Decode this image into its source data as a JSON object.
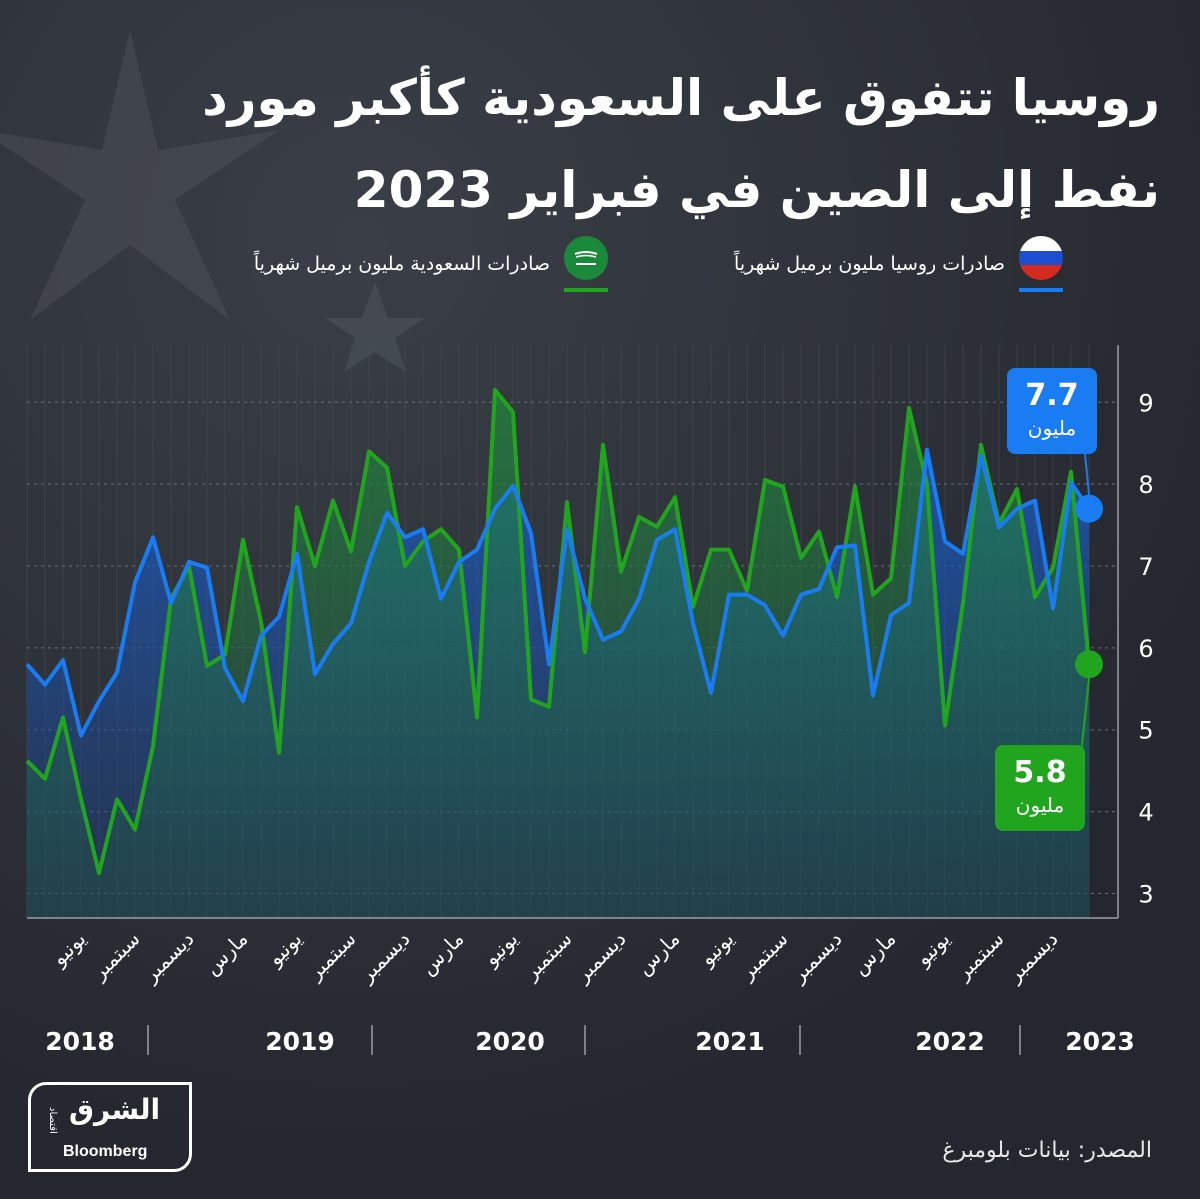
{
  "header": {
    "title_line1": "روسيا تتفوق على السعودية كأكبر مورد",
    "title_line2": "نفط إلى الصين في فبراير 2023"
  },
  "legend": {
    "russia_label": "صادرات روسيا مليون برميل شهرياً",
    "saudi_label": "صادرات السعودية مليون برميل شهرياً"
  },
  "colors": {
    "russia": "#1a7cf2",
    "saudi": "#22a51e",
    "background": "#2a2e35"
  },
  "callouts": {
    "russia_value": "7.7",
    "russia_unit": "مليون",
    "saudi_value": "5.8",
    "saudi_unit": "مليون"
  },
  "footer": {
    "source": "المصدر: بيانات بلومبرغ",
    "logo_ar": "الشرق",
    "logo_sub": "اقتصاد",
    "logo_en": "Bloomberg"
  },
  "chart_data": {
    "type": "area",
    "ylim": [
      2.7,
      9.7
    ],
    "yticks": [
      3,
      4,
      5,
      6,
      7,
      8,
      9
    ],
    "x": [
      "2018-03",
      "2018-04",
      "2018-05",
      "2018-06",
      "2018-07",
      "2018-08",
      "2018-09",
      "2018-10",
      "2018-11",
      "2018-12",
      "2019-01",
      "2019-02",
      "2019-03",
      "2019-04",
      "2019-05",
      "2019-06",
      "2019-07",
      "2019-08",
      "2019-09",
      "2019-10",
      "2019-11",
      "2019-12",
      "2020-01",
      "2020-02",
      "2020-03",
      "2020-04",
      "2020-05",
      "2020-06",
      "2020-07",
      "2020-08",
      "2020-09",
      "2020-10",
      "2020-11",
      "2020-12",
      "2021-01",
      "2021-02",
      "2021-03",
      "2021-04",
      "2021-05",
      "2021-06",
      "2021-07",
      "2021-08",
      "2021-09",
      "2021-10",
      "2021-11",
      "2021-12",
      "2022-01",
      "2022-02",
      "2022-03",
      "2022-04",
      "2022-05",
      "2022-06",
      "2022-07",
      "2022-08",
      "2022-09",
      "2022-10",
      "2022-11",
      "2022-12",
      "2023-01",
      "2023-02"
    ],
    "month_labels": [
      {
        "month": "2018-06",
        "label": "يونيو"
      },
      {
        "month": "2018-09",
        "label": "سبتمبر"
      },
      {
        "month": "2018-12",
        "label": "ديسمبر"
      },
      {
        "month": "2019-03",
        "label": "مارس"
      },
      {
        "month": "2019-06",
        "label": "يونيو"
      },
      {
        "month": "2019-09",
        "label": "سبتمبر"
      },
      {
        "month": "2019-12",
        "label": "ديسمبر"
      },
      {
        "month": "2020-03",
        "label": "مارس"
      },
      {
        "month": "2020-06",
        "label": "يونيو"
      },
      {
        "month": "2020-09",
        "label": "سبتمبر"
      },
      {
        "month": "2020-12",
        "label": "ديسمبر"
      },
      {
        "month": "2021-03",
        "label": "مارس"
      },
      {
        "month": "2021-06",
        "label": "يونيو"
      },
      {
        "month": "2021-09",
        "label": "سبتمبر"
      },
      {
        "month": "2021-12",
        "label": "ديسمبر"
      },
      {
        "month": "2022-03",
        "label": "مارس"
      },
      {
        "month": "2022-06",
        "label": "يونيو"
      },
      {
        "month": "2022-09",
        "label": "سبتمبر"
      },
      {
        "month": "2022-12",
        "label": "ديسمبر"
      }
    ],
    "years": [
      "2018",
      "2019",
      "2020",
      "2021",
      "2022",
      "2023"
    ],
    "series": [
      {
        "name": "صادرات روسيا مليون برميل شهرياً",
        "values": [
          5.8,
          5.55,
          5.85,
          4.93,
          5.35,
          5.7,
          6.8,
          7.35,
          6.55,
          7.05,
          6.98,
          5.75,
          5.35,
          6.15,
          6.38,
          7.15,
          5.68,
          6.05,
          6.3,
          7.05,
          7.65,
          7.35,
          7.45,
          6.6,
          7.05,
          7.2,
          7.7,
          7.98,
          7.4,
          5.8,
          7.45,
          6.6,
          6.1,
          6.2,
          6.6,
          7.32,
          7.45,
          6.3,
          5.45,
          6.65,
          6.65,
          6.52,
          6.15,
          6.65,
          6.72,
          7.23,
          7.25,
          5.42,
          6.4,
          6.55,
          8.42,
          7.3,
          7.15,
          8.35,
          7.47,
          7.7,
          7.8,
          6.48,
          8.02,
          7.7
        ]
      },
      {
        "name": "صادرات السعودية مليون برميل شهرياً",
        "values": [
          4.62,
          4.4,
          5.15,
          4.15,
          3.25,
          4.15,
          3.78,
          4.8,
          6.6,
          7.0,
          5.78,
          5.92,
          7.32,
          6.32,
          4.72,
          7.72,
          7.0,
          7.8,
          7.18,
          8.4,
          8.2,
          7.0,
          7.3,
          7.45,
          7.2,
          5.15,
          9.15,
          8.88,
          5.37,
          5.28,
          7.78,
          5.95,
          8.48,
          6.93,
          7.6,
          7.48,
          7.84,
          6.5,
          7.2,
          7.2,
          6.7,
          8.05,
          7.97,
          7.1,
          7.42,
          6.62,
          7.97,
          6.65,
          6.85,
          8.93,
          8.0,
          5.05,
          6.55,
          8.48,
          7.52,
          7.94,
          6.62,
          6.98,
          8.15,
          5.8
        ]
      }
    ]
  }
}
